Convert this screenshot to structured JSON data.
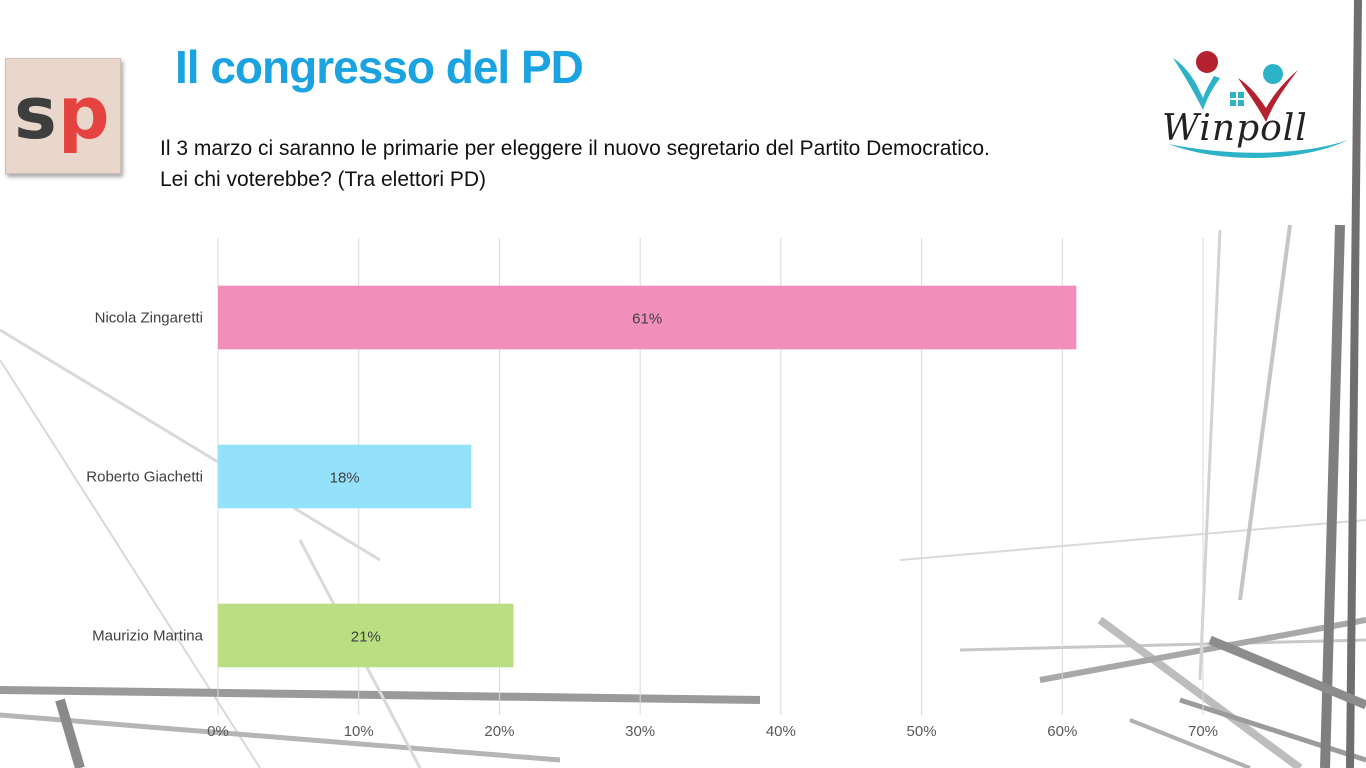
{
  "slide": {
    "title": "Il congresso del PD",
    "question_line1": "Il 3 marzo ci saranno le primarie per eleggere il nuovo segretario del Partito Democratico.",
    "question_line2": "Lei chi voterebbe? (Tra elettori PD)"
  },
  "logos": {
    "left_letters": [
      "s",
      "p"
    ],
    "right_text": "Winpoll",
    "left_colors": [
      "#3e3e3e",
      "#e5433f"
    ],
    "right_colors": [
      "#2cb3c8",
      "#b4212f"
    ]
  },
  "chart_data": {
    "type": "bar",
    "orientation": "horizontal",
    "categories": [
      "Nicola Zingaretti",
      "Roberto Giachetti",
      "Maurizio Martina"
    ],
    "values": [
      61,
      18,
      21
    ],
    "value_labels": [
      "61%",
      "18%",
      "21%"
    ],
    "colors": [
      "#f28ebb",
      "#94e1fb",
      "#badf82"
    ],
    "xlim": [
      0,
      70
    ],
    "xticks": [
      "0%",
      "10%",
      "20%",
      "30%",
      "40%",
      "50%",
      "60%",
      "70%"
    ],
    "grid": true,
    "legend": "none"
  }
}
